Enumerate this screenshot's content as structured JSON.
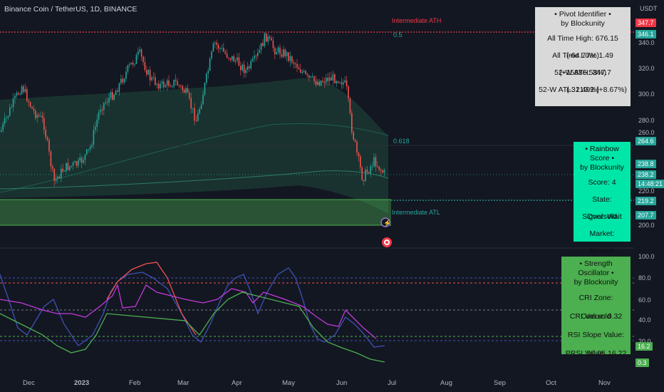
{
  "header": {
    "symbol_title": "Binance Coin / TetherUS, 1D, BINANCE",
    "currency": "USDT"
  },
  "annotations": {
    "intermediate_ath": "Intermediate ATH",
    "intermediate_atl": "Intermediate ATL",
    "fib_top": "0.5",
    "fib_618": "0.618"
  },
  "pivot_panel": {
    "title_line1": "• Pivot Identifier •",
    "title_line2": "by Blockunity",
    "ath": "All Time High: 676.15 (-64.77%)",
    "atl": "All Time Low: 1.49 (+15886.58%)",
    "w52_ath": "52-W ATH: 347.7 (-31.49%)",
    "w52_atl": "52-W ATL: 219.2 (+8.67%)"
  },
  "rainbow_panel": {
    "title_line1": "• Rainbow Score •",
    "title_line2": "by Blockunity",
    "score": "Score: 4",
    "state": "State: Oversold",
    "signal": "Signal: Wait",
    "market": "Market: Bearish"
  },
  "strength_panel": {
    "title_line1": "• Strength Oscillator •",
    "title_line2": "by Blockunity",
    "cri_zone": "CRI Zone: Oversold",
    "cri_value": "CRI Value: 0.32",
    "rsi_slope": "RSI Slope Value: 50.05",
    "prsi": "PRSI Value: 16.22"
  },
  "price_axis": {
    "ticks": [
      "340.0",
      "320.0",
      "300.0",
      "280.0",
      "260.0",
      "220.0",
      "200.0"
    ],
    "tags": [
      {
        "text": "347.7",
        "color": "#f23645"
      },
      {
        "text": "346.1",
        "color": "#26a69a"
      },
      {
        "text": "264.6",
        "color": "#26a69a"
      },
      {
        "text": "238.8",
        "color": "#26a69a"
      },
      {
        "text": "238.2",
        "color": "#26a69a"
      },
      {
        "text": "14:48:21",
        "color": "#26a69a"
      },
      {
        "text": "219.2",
        "color": "#26a69a"
      },
      {
        "text": "207.7",
        "color": "#26a69a"
      }
    ]
  },
  "osc_axis": {
    "ticks": [
      "100.0",
      "80.0",
      "60.0",
      "40.0",
      "20.0"
    ],
    "tags": [
      {
        "text": "16.2",
        "color": "#4caf50"
      },
      {
        "text": "0.3",
        "color": "#4caf50"
      }
    ]
  },
  "time_axis": [
    "Dec",
    "2023",
    "Feb",
    "Mar",
    "Apr",
    "May",
    "Jun",
    "Jul",
    "Aug",
    "Sep",
    "Oct",
    "Nov"
  ],
  "colors": {
    "up": "#26a69a",
    "down": "#ef5350",
    "bg": "#131722"
  }
}
